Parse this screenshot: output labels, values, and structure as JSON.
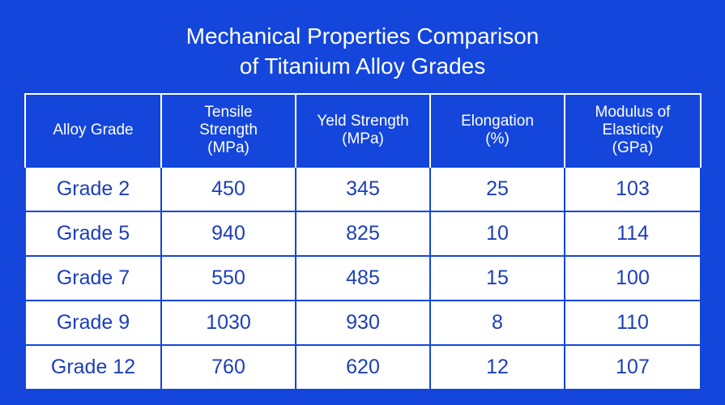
{
  "chart_data": {
    "type": "table",
    "title": [
      "Mechanical Properties Comparison",
      "of Titanium Alloy Grades"
    ],
    "columns": [
      [
        "Alloy Grade"
      ],
      [
        "Tensile",
        "Strength",
        "(MPa)"
      ],
      [
        "Yeld Strength",
        "(MPa)"
      ],
      [
        "Elongation",
        "(%)"
      ],
      [
        "Modulus of",
        "Elasticity",
        "(GPa)"
      ]
    ],
    "rows": [
      [
        "Grade 2",
        "450",
        "345",
        "25",
        "103"
      ],
      [
        "Grade 5",
        "940",
        "825",
        "10",
        "114"
      ],
      [
        "Grade 7",
        "550",
        "485",
        "15",
        "100"
      ],
      [
        "Grade 9",
        "1030",
        "930",
        "8",
        "110"
      ],
      [
        "Grade 12",
        "760",
        "620",
        "12",
        "107"
      ]
    ]
  },
  "colors": {
    "background": "#1446dc",
    "cell_background": "#ffffff",
    "cell_text": "#1c3fb8",
    "header_text": "#ffffff"
  }
}
